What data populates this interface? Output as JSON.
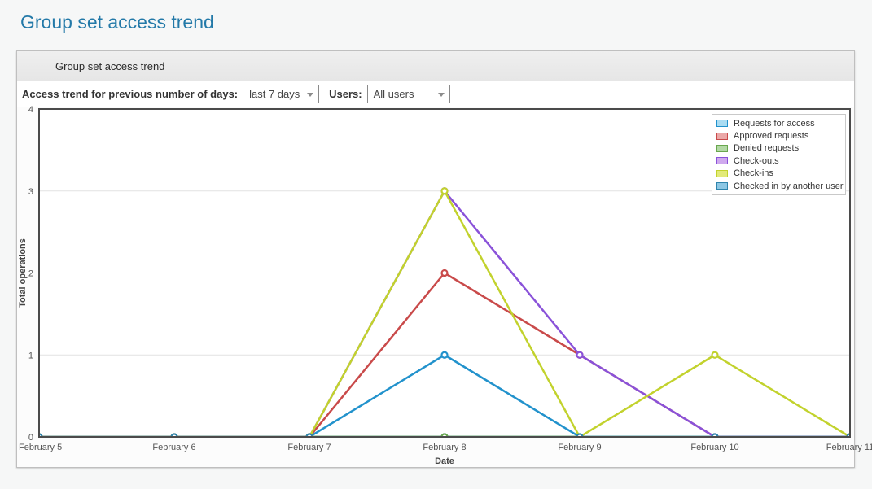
{
  "page": {
    "title": "Group set access trend"
  },
  "panel": {
    "title": "Group set access trend",
    "toolbar": {
      "days_label": "Access trend for previous number of days:",
      "days_value": "last 7 days",
      "users_label": "Users:",
      "users_value": "All users"
    }
  },
  "chart_data": {
    "type": "line",
    "title": "",
    "xlabel": "Date",
    "ylabel": "Total operations",
    "categories": [
      "February 5",
      "February 6",
      "February 7",
      "February 8",
      "February 9",
      "February 10",
      "February 11"
    ],
    "ylim": [
      0,
      4
    ],
    "yticks": [
      0,
      1,
      2,
      3,
      4
    ],
    "grid": "horizontal-only",
    "legend_position": "top-right-inside",
    "plot_border_color": "#4b4b4b",
    "grid_color": "#e2e2e2",
    "series": [
      {
        "name": "Requests for access",
        "color": "#2292cc",
        "fill": "#aadcf2",
        "values": [
          0,
          0,
          0,
          1,
          0,
          0,
          0
        ]
      },
      {
        "name": "Approved requests",
        "color": "#c94a4a",
        "fill": "#eba8a8",
        "values": [
          0,
          0,
          0,
          2,
          1,
          0,
          0
        ]
      },
      {
        "name": "Denied requests",
        "color": "#69a74e",
        "fill": "#b3d9a5",
        "values": [
          0,
          0,
          0,
          0,
          0,
          0,
          0
        ]
      },
      {
        "name": "Check-outs",
        "color": "#8a52d9",
        "fill": "#cfa9ee",
        "values": [
          0,
          0,
          0,
          3,
          1,
          0,
          0
        ]
      },
      {
        "name": "Check-ins",
        "color": "#c2d22d",
        "fill": "#e2ea79",
        "values": [
          0,
          0,
          0,
          3,
          0,
          1,
          0
        ]
      },
      {
        "name": "Checked in by another user",
        "color": "#2f85ad",
        "fill": "#8cc7e4",
        "values": [
          0,
          0,
          0,
          0,
          0,
          0,
          0
        ]
      }
    ],
    "overlay_top_segment": {
      "series_index": 2,
      "from": 2,
      "to": 4,
      "marker_index": 3
    }
  }
}
